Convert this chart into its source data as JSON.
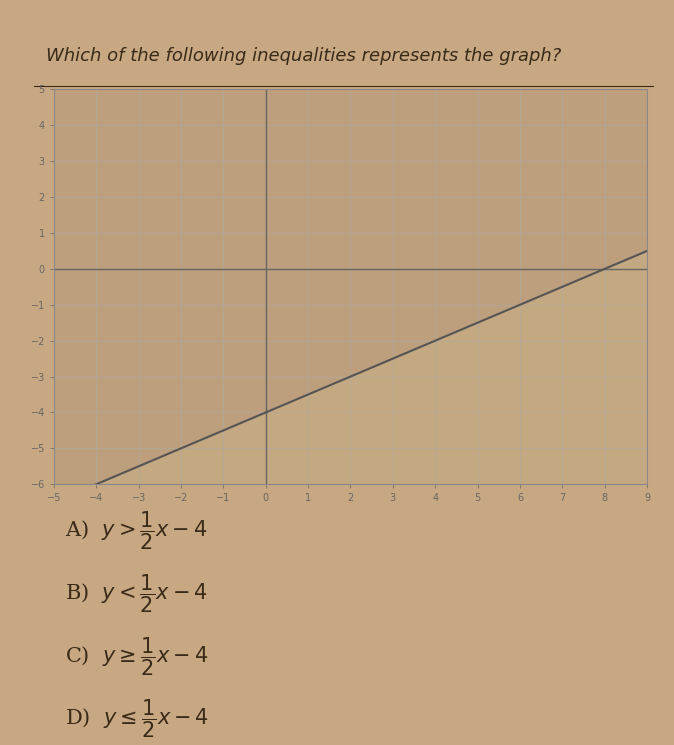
{
  "title": "Which of the following inequalities represents the graph?",
  "title_fontsize": 13,
  "bg_color": "#c8a882",
  "paper_color": "#d4b896",
  "graph_bg": "#c4a882",
  "shade_color": "#b8998070",
  "line_color": "#555555",
  "axis_color": "#666666",
  "grid_color": "#aaaaaa",
  "xmin": -5,
  "xmax": 9,
  "ymin": -6,
  "ymax": 5,
  "slope": 0.5,
  "intercept": -4,
  "choices": [
    "A)  $y > \\dfrac{1}{2}x - 4$",
    "B)  $y < \\dfrac{1}{2}x - 4$",
    "C)  $y \\geq \\dfrac{1}{2}x - 4$",
    "D)  $y \\leq \\dfrac{1}{2}x - 4$"
  ],
  "choice_fontsize": 15,
  "text_color": "#3a2a1a"
}
